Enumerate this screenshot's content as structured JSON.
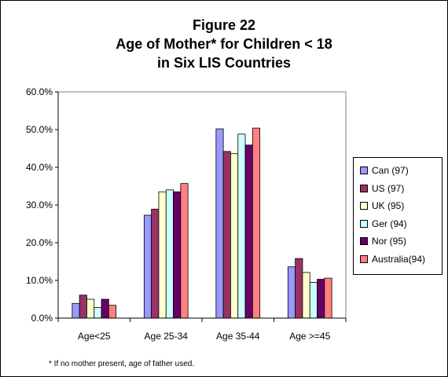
{
  "chart_data": {
    "type": "bar",
    "title_lines": [
      "Figure 22",
      "Age of Mother* for Children < 18",
      "in Six LIS Countries"
    ],
    "categories": [
      "Age<25",
      "Age 25-34",
      "Age 35-44",
      "Age >=45"
    ],
    "series": [
      {
        "name": "Can (97)",
        "color": "#9999FF",
        "values": [
          3.9,
          27.3,
          50.2,
          13.6
        ]
      },
      {
        "name": "US (97)",
        "color": "#993366",
        "values": [
          6.1,
          28.9,
          44.2,
          15.8
        ]
      },
      {
        "name": "UK (95)",
        "color": "#FFFFCC",
        "values": [
          5.0,
          33.5,
          43.6,
          12.1
        ]
      },
      {
        "name": "Ger (94)",
        "color": "#CCFFFF",
        "values": [
          2.8,
          34.0,
          48.8,
          9.5
        ]
      },
      {
        "name": "Nor (95)",
        "color": "#660066",
        "values": [
          5.0,
          33.5,
          45.9,
          10.3
        ]
      },
      {
        "name": "Australia(94)",
        "color": "#FF8080",
        "values": [
          3.4,
          35.7,
          50.4,
          10.6
        ]
      }
    ],
    "y_ticks": [
      "0.0%",
      "10.0%",
      "20.0%",
      "30.0%",
      "40.0%",
      "50.0%",
      "60.0%"
    ],
    "ylim": [
      0,
      60
    ],
    "grid": false,
    "legend_position": "right",
    "footnote": "* If no mother present, age of father used."
  }
}
